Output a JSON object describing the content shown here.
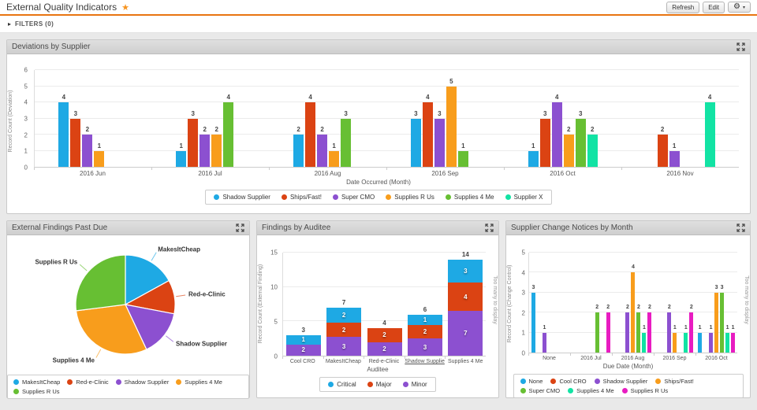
{
  "header": {
    "title": "External Quality Indicators",
    "buttons": {
      "refresh": "Refresh",
      "edit": "Edit"
    },
    "accent_color": "#E87411",
    "star_color": "#F7941E"
  },
  "icons": {
    "star": "★",
    "gear": "⚙",
    "caret": "▾",
    "filters_arrow": "▸"
  },
  "filters": {
    "label": "FILTERS (0)"
  },
  "chart_data": [
    {
      "type": "bar",
      "title": "Deviations by Supplier",
      "categories": [
        "2016 Jun",
        "2016 Jul",
        "2016 Aug",
        "2016 Sep",
        "2016 Oct",
        "2016 Nov"
      ],
      "series": [
        {
          "name": "Shadow Supplier",
          "color": "#1EA9E4",
          "values": [
            4,
            1,
            2,
            3,
            1,
            null
          ]
        },
        {
          "name": "Ships/Fast!",
          "color": "#DB4313",
          "values": [
            3,
            3,
            4,
            4,
            3,
            2
          ]
        },
        {
          "name": "Super CMO",
          "color": "#8C50D0",
          "values": [
            2,
            2,
            2,
            3,
            4,
            1
          ]
        },
        {
          "name": "Supplies R Us",
          "color": "#F89D1C",
          "values": [
            1,
            2,
            1,
            5,
            2,
            null
          ]
        },
        {
          "name": "Supplies 4 Me",
          "color": "#67BF33",
          "values": [
            null,
            4,
            3,
            1,
            3,
            null
          ]
        },
        {
          "name": "Supplier X",
          "color": "#12E3A4",
          "values": [
            null,
            null,
            null,
            null,
            2,
            4
          ]
        }
      ],
      "xlabel": "Date Occurred (Month)",
      "ylabel": "Record Count (Deviation)",
      "ylim": [
        0,
        6
      ],
      "yticks": [
        0,
        1,
        2,
        3,
        4,
        5,
        6
      ],
      "legend_position": "bottom",
      "grid": true
    },
    {
      "type": "pie",
      "title": "External Findings Past Due",
      "labels": [
        "MakesItCheap",
        "Red-e-Clinic",
        "Shadow Supplier",
        "Supplies 4 Me",
        "Supplies R Us"
      ],
      "values": [
        17,
        11,
        15,
        30,
        27
      ],
      "values_unit": "percent_estimated",
      "colors": [
        "#1EA9E4",
        "#DB4313",
        "#8C50D0",
        "#F89D1C",
        "#67BF33"
      ],
      "legend_position": "bottom"
    },
    {
      "type": "bar",
      "stacked": true,
      "title": "Findings by Auditee",
      "categories": [
        "Cool CRO",
        "MakesItCheap",
        "Red-e-Clinic",
        "Shadow Supplie",
        "Supplies 4 Me"
      ],
      "underlined_category": "Shadow Supplie",
      "series": [
        {
          "name": "Minor",
          "color": "#8C50D0",
          "values": [
            2,
            3,
            2,
            3,
            7
          ]
        },
        {
          "name": "Major",
          "color": "#DB4313",
          "values": [
            0,
            2,
            2,
            2,
            4
          ]
        },
        {
          "name": "Critical",
          "color": "#1EA9E4",
          "values": [
            1,
            2,
            0,
            1,
            3
          ]
        }
      ],
      "totals": [
        3,
        7,
        4,
        6,
        14
      ],
      "legend_order": [
        "Critical",
        "Major",
        "Minor"
      ],
      "xlabel": "Auditee",
      "ylabel": "Record Count (External Finding)",
      "right_label": "Too many to display",
      "ylim": [
        0,
        15
      ],
      "yticks": [
        0,
        5,
        10,
        15
      ],
      "legend_position": "bottom",
      "grid": true
    },
    {
      "type": "bar",
      "title": "Supplier Change Notices by Month",
      "categories": [
        "None",
        "2016 Jul",
        "2016 Aug",
        "2016 Sep",
        "2016 Oct"
      ],
      "series": [
        {
          "name": "None",
          "color": "#1EA9E4",
          "values": [
            3,
            null,
            null,
            null,
            1
          ]
        },
        {
          "name": "Cool CRO",
          "color": "#DB4313",
          "values": [
            null,
            null,
            null,
            null,
            null
          ]
        },
        {
          "name": "Shadow Supplier",
          "color": "#8C50D0",
          "values": [
            1,
            null,
            2,
            2,
            1
          ]
        },
        {
          "name": "Ships/Fast!",
          "color": "#F89D1C",
          "values": [
            null,
            null,
            4,
            1,
            3
          ]
        },
        {
          "name": "Super CMO",
          "color": "#67BF33",
          "values": [
            null,
            2,
            2,
            null,
            3
          ]
        },
        {
          "name": "Supplies 4 Me",
          "color": "#12E3A4",
          "values": [
            null,
            null,
            1,
            1,
            1
          ]
        },
        {
          "name": "Supplies R Us",
          "color": "#E81CC1",
          "values": [
            null,
            2,
            2,
            2,
            1
          ]
        }
      ],
      "xlabel": "Due Date (Month)",
      "ylabel": "Record Count (Change Control)",
      "right_label": "Too many to display",
      "ylim": [
        0,
        5
      ],
      "yticks": [
        0,
        1,
        2,
        3,
        4,
        5
      ],
      "legend_position": "bottom",
      "grid": true
    }
  ]
}
